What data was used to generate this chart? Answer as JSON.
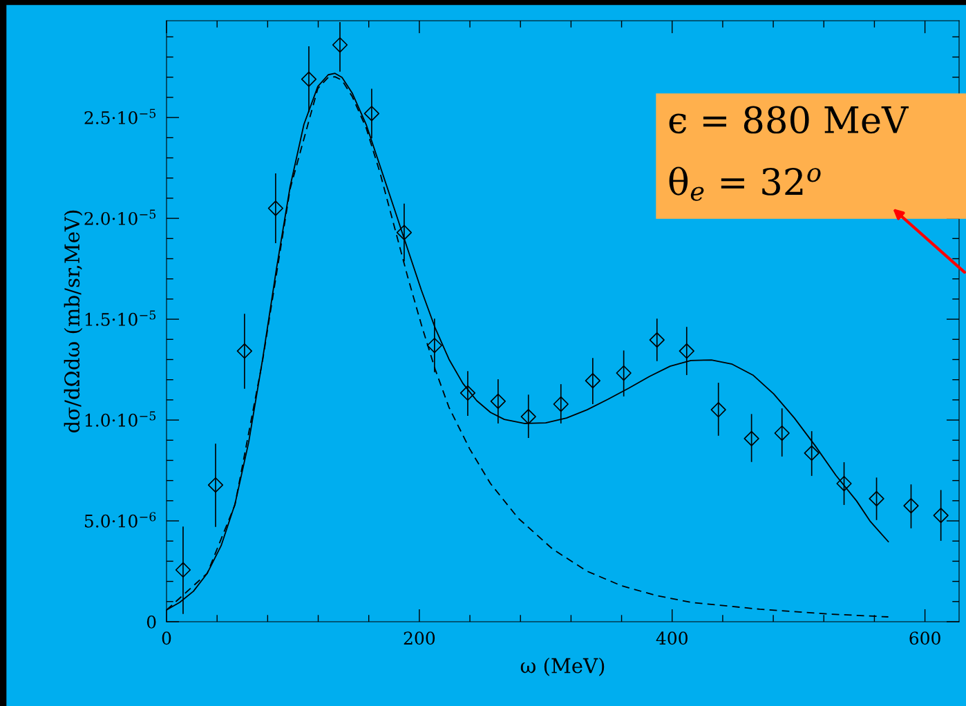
{
  "chart_data": {
    "type": "scatter",
    "xlabel": "ω (MeV)",
    "ylabel": "dσ/dΩdω (mb/sr,MeV)",
    "xlim": [
      0,
      627
    ],
    "ylim": [
      0,
      2.98e-05
    ],
    "xticks": [
      0,
      200,
      400,
      600
    ],
    "yticks": [
      {
        "value": 0,
        "label": "0"
      },
      {
        "value": 5e-06,
        "label": "5.0·10$^{−6}$"
      },
      {
        "value": 1e-05,
        "label": "1.0·10$^{−5}$"
      },
      {
        "value": 1.5e-05,
        "label": "1.5·10$^{−5}$"
      },
      {
        "value": 2e-05,
        "label": "2.0·10$^{−5}$"
      },
      {
        "value": 2.5e-05,
        "label": "2.5·10$^{−5}$"
      }
    ],
    "grid": false,
    "legend": false,
    "annotations": [
      "ϵ = 880 MeV",
      "θ$_{e}$ = 32$^{o}$"
    ],
    "series": [
      {
        "color": "#000000",
        "marker": "diamond",
        "x": [
          13.1,
          38.8,
          61.7,
          86.3,
          112.6,
          137.2,
          162.3,
          188,
          212,
          238.3,
          262.3,
          286.3,
          312,
          337.2,
          361.7,
          388,
          411.5,
          436.6,
          462.8,
          486.9,
          510.4,
          536,
          561.7,
          589,
          612.6
        ],
        "values": [
          2.57e-06,
          6.78e-06,
          1.342e-05,
          2.05e-05,
          2.69e-05,
          2.86e-05,
          2.52e-05,
          1.93e-05,
          1.37e-05,
          1.134e-05,
          1.093e-05,
          1.017e-05,
          1.079e-05,
          1.195e-05,
          1.233e-05,
          1.397e-05,
          1.342e-05,
          1.051e-05,
          9.08e-06,
          9.35e-06,
          8.36e-06,
          6.85e-06,
          6.1e-06,
          5.75e-06,
          5.27e-06
        ],
        "errors": [
          [
            4.1e-07,
            4.69e-06
          ],
          [
            4.73e-06,
            8.8e-06
          ],
          [
            1.158e-05,
            1.524e-05
          ],
          [
            1.88e-05,
            2.22e-05
          ],
          [
            2.53e-05,
            2.85e-05
          ],
          [
            2.73e-05,
            2.97e-05
          ],
          [
            2.4e-05,
            2.64e-05
          ],
          [
            1.79e-05,
            2.07e-05
          ],
          [
            1.24e-05,
            1.5e-05
          ],
          [
            1.024e-05,
            1.24e-05
          ],
          [
            9.86e-06,
            1.199e-05
          ],
          [
            9.14e-06,
            1.123e-05
          ],
          [
            9.86e-06,
            1.175e-05
          ],
          [
            1.082e-05,
            1.305e-05
          ],
          [
            1.12e-05,
            1.342e-05
          ],
          [
            1.295e-05,
            1.5e-05
          ],
          [
            1.226e-05,
            1.459e-05
          ],
          [
            9.25e-06,
            1.182e-05
          ],
          [
            7.95e-06,
            1.027e-05
          ],
          [
            8.22e-06,
            1.055e-05
          ],
          [
            7.26e-06,
            9.42e-06
          ],
          [
            5.82e-06,
            7.88e-06
          ],
          [
            5.07e-06,
            7.12e-06
          ],
          [
            4.66e-06,
            6.78e-06
          ],
          [
            4.04e-06,
            6.5e-06
          ]
        ]
      },
      {
        "type": "line",
        "color": "#000000",
        "line_style": "solid",
        "x": [
          0,
          10.4,
          21.3,
          32.2,
          43.2,
          54.1,
          65.0,
          76.0,
          86.9,
          97.8,
          108.7,
          119.7,
          127.9,
          133.3,
          138.8,
          147.0,
          157.9,
          168.9,
          179.8,
          190.7,
          201.6,
          212.6,
          223.5,
          234.4,
          245.4,
          256.3,
          267.2,
          283.6,
          300.0,
          316.4,
          332.8,
          349.2,
          365.6,
          382.0,
          398.4,
          414.8,
          431.1,
          447.5,
          463.9,
          480.3,
          496.7,
          513.1,
          529.5,
          545.9,
          556.8,
          571.0
        ],
        "values": [
          5.8e-07,
          9.6e-07,
          1.51e-06,
          2.4e-06,
          3.77e-06,
          5.82e-06,
          8.9e-06,
          1.301e-05,
          1.747e-05,
          2.158e-05,
          2.466e-05,
          2.654e-05,
          2.712e-05,
          2.719e-05,
          2.699e-05,
          2.62e-05,
          2.466e-05,
          2.26e-05,
          2.055e-05,
          1.849e-05,
          1.644e-05,
          1.455e-05,
          1.301e-05,
          1.182e-05,
          1.096e-05,
          1.038e-05,
          1.003e-05,
          9.83e-06,
          9.86e-06,
          1.01e-05,
          1.051e-05,
          1.103e-05,
          1.158e-05,
          1.216e-05,
          1.267e-05,
          1.295e-05,
          1.298e-05,
          1.277e-05,
          1.223e-05,
          1.13e-05,
          1.01e-05,
          8.73e-06,
          7.26e-06,
          5.99e-06,
          4.97e-06,
          3.97e-06
        ]
      },
      {
        "type": "line",
        "color": "#000000",
        "line_style": "dashed",
        "x": [
          0,
          32.2,
          54.1,
          76.0,
          97.8,
          119.7,
          127.9,
          133.3,
          138.8,
          147.0,
          157.9,
          168.9,
          179.8,
          190.7,
          201.6,
          212.6,
          223.5,
          239.9,
          256.3,
          278.1,
          305.5,
          332.8,
          360.1,
          387.4,
          414.8,
          469.4,
          524.0,
          571.0
        ],
        "values": [
          5.8e-07,
          2.4e-06,
          5.79e-06,
          1.295e-05,
          2.147e-05,
          2.644e-05,
          2.699e-05,
          2.702e-05,
          2.685e-05,
          2.603e-05,
          2.449e-05,
          2.226e-05,
          1.969e-05,
          1.712e-05,
          1.473e-05,
          1.25e-05,
          1.062e-05,
          8.56e-06,
          6.85e-06,
          5.14e-06,
          3.6e-06,
          2.5e-06,
          1.78e-06,
          1.3e-06,
          9.6e-07,
          6.2e-07,
          3.8e-07,
          2.4e-07
        ]
      }
    ]
  }
}
